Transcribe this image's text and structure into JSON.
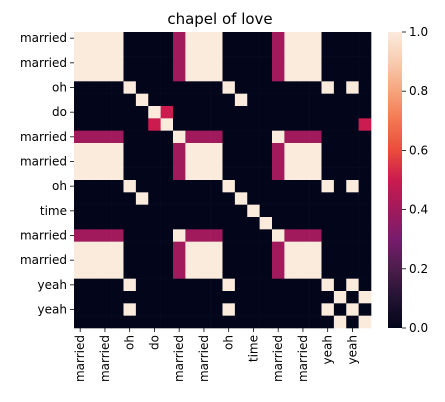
{
  "chart_data": {
    "type": "heatmap",
    "title": "chapel of love",
    "row_labels": [
      "married",
      "",
      "married",
      "",
      "oh",
      "",
      "do",
      "",
      "married",
      "",
      "married",
      "",
      "oh",
      "",
      "time",
      "",
      "married",
      "",
      "married",
      "",
      "yeah",
      "",
      "yeah",
      ""
    ],
    "col_labels": [
      "married",
      "",
      "married",
      "",
      "oh",
      "",
      "do",
      "",
      "married",
      "",
      "married",
      "",
      "oh",
      "",
      "time",
      "",
      "married",
      "",
      "married",
      "",
      "yeah",
      "",
      "yeah",
      ""
    ],
    "tokens": [
      "married",
      "married",
      "married",
      "married",
      "oh",
      "oh",
      "do",
      "do",
      "married",
      "married",
      "married",
      "married",
      "oh",
      "oh",
      "time",
      "time",
      "married",
      "married",
      "married",
      "married",
      "yeah",
      "yeah",
      "yeah",
      "yeah"
    ],
    "x_tick_labels": [
      "married",
      "married",
      "oh",
      "do",
      "married",
      "married",
      "oh",
      "time",
      "married",
      "married",
      "yeah",
      "yeah"
    ],
    "y_tick_labels": [
      "married",
      "married",
      "oh",
      "do",
      "married",
      "married",
      "oh",
      "time",
      "married",
      "married",
      "yeah",
      "yeah"
    ],
    "colorbar": {
      "min": 0.0,
      "max": 1.0,
      "ticks": [
        "0.0",
        "0.2",
        "0.4",
        "0.6",
        "0.8",
        "1.0"
      ]
    },
    "colormap": "rocket",
    "values": [
      [
        1,
        1,
        1,
        1,
        0,
        0,
        0,
        0,
        0.4,
        1,
        1,
        1,
        0,
        0,
        0,
        0,
        0.4,
        1,
        1,
        1,
        0,
        0,
        0,
        0
      ],
      [
        1,
        1,
        1,
        1,
        0,
        0,
        0,
        0,
        0.4,
        1,
        1,
        1,
        0,
        0,
        0,
        0,
        0.4,
        1,
        1,
        1,
        0,
        0,
        0,
        0
      ],
      [
        1,
        1,
        1,
        1,
        0,
        0,
        0,
        0,
        0.4,
        1,
        1,
        1,
        0,
        0,
        0,
        0,
        0.4,
        1,
        1,
        1,
        0,
        0,
        0,
        0
      ],
      [
        1,
        1,
        1,
        1,
        0,
        0,
        0,
        0,
        0.4,
        1,
        1,
        1,
        0,
        0,
        0,
        0,
        0.4,
        1,
        1,
        1,
        0,
        0,
        0,
        0
      ],
      [
        0,
        0,
        0,
        0,
        1,
        0,
        0,
        0,
        0,
        0,
        0,
        0,
        1,
        0,
        0,
        0,
        0,
        0,
        0,
        0,
        1,
        0,
        1,
        0
      ],
      [
        0,
        0,
        0,
        0,
        0,
        1,
        0,
        0,
        0,
        0,
        0,
        0,
        0,
        1,
        0,
        0,
        0,
        0,
        0,
        0,
        0,
        0,
        0,
        0
      ],
      [
        0,
        0,
        0,
        0,
        0,
        0,
        1,
        0.5,
        0,
        0,
        0,
        0,
        0,
        0,
        0,
        0,
        0,
        0,
        0,
        0,
        0,
        0,
        0,
        0
      ],
      [
        0,
        0,
        0,
        0,
        0,
        0,
        0.5,
        1,
        0,
        0,
        0,
        0,
        0,
        0,
        0,
        0,
        0,
        0,
        0,
        0,
        0,
        0,
        0,
        0.5
      ],
      [
        0.4,
        0.4,
        0.4,
        0.4,
        0,
        0,
        0,
        0,
        1,
        0.4,
        0.4,
        0.4,
        0,
        0,
        0,
        0,
        1,
        0.4,
        0.4,
        0.4,
        0,
        0,
        0,
        0
      ],
      [
        1,
        1,
        1,
        1,
        0,
        0,
        0,
        0,
        0.4,
        1,
        1,
        1,
        0,
        0,
        0,
        0,
        0.4,
        1,
        1,
        1,
        0,
        0,
        0,
        0
      ],
      [
        1,
        1,
        1,
        1,
        0,
        0,
        0,
        0,
        0.4,
        1,
        1,
        1,
        0,
        0,
        0,
        0,
        0.4,
        1,
        1,
        1,
        0,
        0,
        0,
        0
      ],
      [
        1,
        1,
        1,
        1,
        0,
        0,
        0,
        0,
        0.4,
        1,
        1,
        1,
        0,
        0,
        0,
        0,
        0.4,
        1,
        1,
        1,
        0,
        0,
        0,
        0
      ],
      [
        0,
        0,
        0,
        0,
        1,
        0,
        0,
        0,
        0,
        0,
        0,
        0,
        1,
        0,
        0,
        0,
        0,
        0,
        0,
        0,
        1,
        0,
        1,
        0
      ],
      [
        0,
        0,
        0,
        0,
        0,
        1,
        0,
        0,
        0,
        0,
        0,
        0,
        0,
        1,
        0,
        0,
        0,
        0,
        0,
        0,
        0,
        0,
        0,
        0
      ],
      [
        0,
        0,
        0,
        0,
        0,
        0,
        0,
        0,
        0,
        0,
        0,
        0,
        0,
        0,
        1,
        0,
        0,
        0,
        0,
        0,
        0,
        0,
        0,
        0
      ],
      [
        0,
        0,
        0,
        0,
        0,
        0,
        0,
        0,
        0,
        0,
        0,
        0,
        0,
        0,
        0,
        1,
        0,
        0,
        0,
        0,
        0,
        0,
        0,
        0
      ],
      [
        0.4,
        0.4,
        0.4,
        0.4,
        0,
        0,
        0,
        0,
        1,
        0.4,
        0.4,
        0.4,
        0,
        0,
        0,
        0,
        1,
        0.4,
        0.4,
        0.4,
        0,
        0,
        0,
        0
      ],
      [
        1,
        1,
        1,
        1,
        0,
        0,
        0,
        0,
        0.4,
        1,
        1,
        1,
        0,
        0,
        0,
        0,
        0.4,
        1,
        1,
        1,
        0,
        0,
        0,
        0
      ],
      [
        1,
        1,
        1,
        1,
        0,
        0,
        0,
        0,
        0.4,
        1,
        1,
        1,
        0,
        0,
        0,
        0,
        0.4,
        1,
        1,
        1,
        0,
        0,
        0,
        0
      ],
      [
        1,
        1,
        1,
        1,
        0,
        0,
        0,
        0,
        0.4,
        1,
        1,
        1,
        0,
        0,
        0,
        0,
        0.4,
        1,
        1,
        1,
        0,
        0,
        0,
        0
      ],
      [
        0,
        0,
        0,
        0,
        1,
        0,
        0,
        0,
        0,
        0,
        0,
        0,
        1,
        0,
        0,
        0,
        0,
        0,
        0,
        0,
        1,
        0,
        1,
        0
      ],
      [
        0,
        0,
        0,
        0,
        0,
        0,
        0,
        0,
        0,
        0,
        0,
        0,
        0,
        0,
        0,
        0,
        0,
        0,
        0,
        0,
        0,
        1,
        0,
        1
      ],
      [
        0,
        0,
        0,
        0,
        1,
        0,
        0,
        0,
        0,
        0,
        0,
        0,
        1,
        0,
        0,
        0,
        0,
        0,
        0,
        0,
        1,
        0,
        1,
        0
      ],
      [
        0,
        0,
        0,
        0,
        0,
        0,
        0,
        0,
        0,
        0,
        0,
        0,
        0,
        0,
        0,
        0,
        0,
        0,
        0,
        0,
        0,
        1,
        0,
        1
      ]
    ]
  }
}
